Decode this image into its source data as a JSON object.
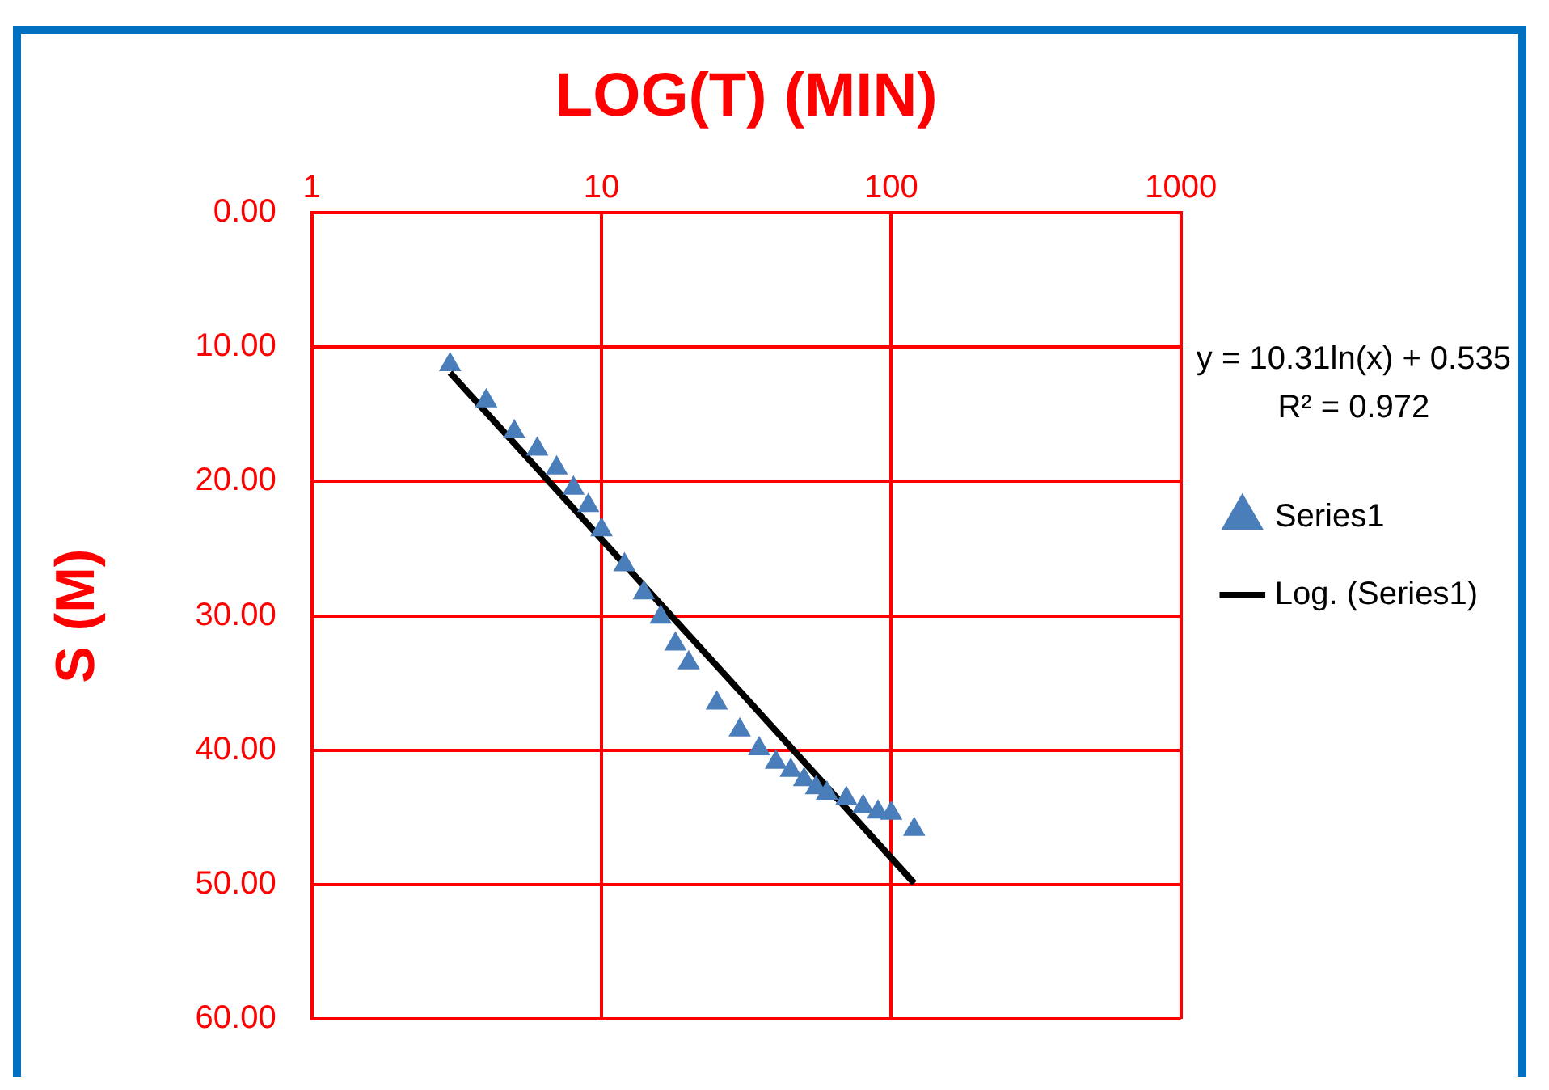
{
  "chart_data": {
    "type": "scatter",
    "xlabel": "LOG(T) (MIN)",
    "ylabel": "S (M)",
    "log": "x",
    "xlim": [
      1,
      1000
    ],
    "xticks": [
      1,
      10,
      100,
      1000
    ],
    "ylim": [
      60,
      0
    ],
    "yticks": [
      {
        "value": 0,
        "label": "0.00"
      },
      {
        "value": 10,
        "label": "10.00"
      },
      {
        "value": 20,
        "label": "20.00"
      },
      {
        "value": 30,
        "label": "30.00"
      },
      {
        "value": 40,
        "label": "40.00"
      },
      {
        "value": 50,
        "label": "50.00"
      },
      {
        "value": 60,
        "label": "60.00"
      }
    ],
    "grid": true,
    "legend": "right",
    "marker": "triangle",
    "annotations": [
      "y = 10.31ln(x) + 0.535",
      "R² = 0.972"
    ],
    "series": [
      {
        "name": "Series1",
        "color": "#4a7ebb",
        "x": [
          3,
          4,
          5,
          6,
          7,
          8,
          9,
          10,
          12,
          14,
          16,
          18,
          20,
          25,
          30,
          35,
          40,
          45,
          50,
          55,
          60,
          70,
          80,
          90,
          100,
          120
        ],
        "values": [
          11.3,
          14.0,
          16.3,
          17.6,
          19.0,
          20.5,
          21.8,
          23.6,
          26.2,
          28.3,
          30.1,
          32.1,
          33.5,
          36.5,
          38.5,
          39.9,
          40.9,
          41.5,
          42.2,
          42.8,
          43.2,
          43.6,
          44.2,
          44.6,
          44.7,
          45.9
        ]
      },
      {
        "name": "Log. (Series1)",
        "type": "line",
        "color": "#000000",
        "line_style": "solid",
        "marker": "none",
        "x": [
          3,
          10,
          30,
          120
        ],
        "values": [
          11.9,
          24.3,
          35.6,
          49.9
        ]
      }
    ]
  }
}
